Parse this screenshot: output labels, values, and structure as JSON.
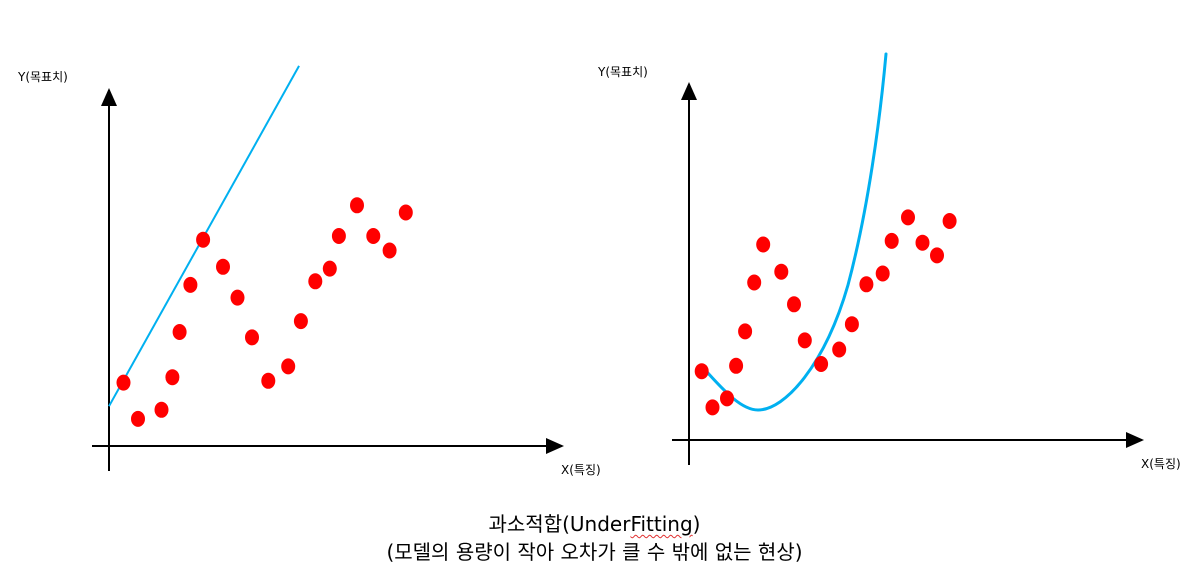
{
  "diagram": {
    "left_panel": {
      "y_label": "Y(목표치)",
      "x_label": "X(특징)",
      "fit_type": "linear",
      "points": [
        [
          0.8,
          3.5
        ],
        [
          1.6,
          1.5
        ],
        [
          2.9,
          2.0
        ],
        [
          3.5,
          3.8
        ],
        [
          3.9,
          6.3
        ],
        [
          4.5,
          8.9
        ],
        [
          5.2,
          11.4
        ],
        [
          6.3,
          9.9
        ],
        [
          7.1,
          8.2
        ],
        [
          7.9,
          6.0
        ],
        [
          8.8,
          3.6
        ],
        [
          9.9,
          4.4
        ],
        [
          10.6,
          6.9
        ],
        [
          11.4,
          9.1
        ],
        [
          12.2,
          9.8
        ],
        [
          12.7,
          11.6
        ],
        [
          13.7,
          13.3
        ],
        [
          14.6,
          11.6
        ],
        [
          15.5,
          10.8
        ],
        [
          16.4,
          12.9
        ]
      ],
      "line": [
        [
          0,
          2.2
        ],
        [
          10.5,
          21.0
        ]
      ]
    },
    "right_panel": {
      "y_label": "Y(목표치)",
      "x_label": "X(특징)",
      "fit_type": "curve",
      "points": [
        [
          0.7,
          3.8
        ],
        [
          1.3,
          1.8
        ],
        [
          2.1,
          2.3
        ],
        [
          2.6,
          4.1
        ],
        [
          3.1,
          6.0
        ],
        [
          3.6,
          8.7
        ],
        [
          4.1,
          10.8
        ],
        [
          5.1,
          9.3
        ],
        [
          5.8,
          7.5
        ],
        [
          6.4,
          5.5
        ],
        [
          7.3,
          4.2
        ],
        [
          8.3,
          5.0
        ],
        [
          9.0,
          6.4
        ],
        [
          9.8,
          8.6
        ],
        [
          10.7,
          9.2
        ],
        [
          11.2,
          11.0
        ],
        [
          12.1,
          12.3
        ],
        [
          12.9,
          10.9
        ],
        [
          13.7,
          10.2
        ],
        [
          14.4,
          12.1
        ]
      ]
    }
  },
  "caption": {
    "title_prefix": "과소적합(Under",
    "title_squiggle": "Fitting",
    "title_suffix": ")",
    "subtitle": "(모델의 용량이 작아 오차가 클 수 밖에 없는 현상)"
  },
  "colors": {
    "points": "#ff0000",
    "fit_line": "#00b0f0",
    "axes": "#000000"
  }
}
